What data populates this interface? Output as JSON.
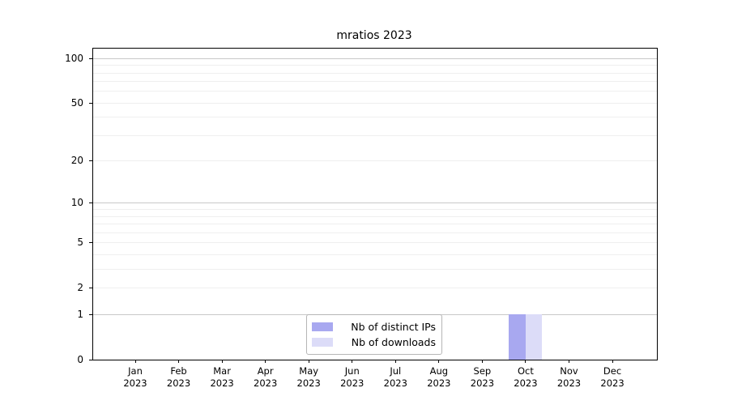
{
  "chart_data": {
    "type": "bar",
    "title": "mratios 2023",
    "categories": [
      "Jan",
      "Feb",
      "Mar",
      "Apr",
      "May",
      "Jun",
      "Jul",
      "Aug",
      "Sep",
      "Oct",
      "Nov",
      "Dec"
    ],
    "category_year": "2023",
    "series": [
      {
        "name": "Nb of distinct IPs",
        "color": "#a8a8f0",
        "values": [
          0,
          0,
          0,
          0,
          0,
          0,
          0,
          0,
          0,
          1,
          0,
          0
        ]
      },
      {
        "name": "Nb of downloads",
        "color": "#dcdcf8",
        "values": [
          0,
          0,
          0,
          0,
          0,
          0,
          0,
          0,
          0,
          1,
          0,
          0
        ]
      }
    ],
    "xlabel": "",
    "ylabel": "",
    "y_axis": {
      "scale": "log10(1+y)",
      "ticks": [
        0,
        1,
        2,
        5,
        10,
        20,
        50,
        100
      ],
      "range": [
        0,
        117
      ],
      "major_gridlines": [
        1,
        10,
        100
      ],
      "minor_gridlines": [
        2,
        3,
        4,
        5,
        6,
        7,
        8,
        9,
        20,
        30,
        40,
        50,
        60,
        70,
        80,
        90
      ],
      "grid": "on"
    },
    "legend": {
      "position": "lower center",
      "entries": [
        "Nb of distinct IPs",
        "Nb of downloads"
      ]
    },
    "colors": {
      "major_gridline": "#c9c9c9",
      "minor_gridline": "#efefef",
      "axis": "#000000",
      "text": "#000000"
    }
  }
}
